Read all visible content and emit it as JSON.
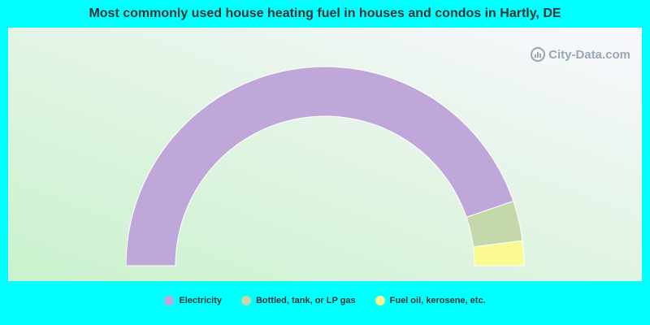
{
  "chart_data": {
    "type": "pie",
    "variant": "half-donut",
    "title": "Most commonly used house heating fuel in houses and condos in Hartly, DE",
    "categories": [
      "Electricity",
      "Bottled, tank, or LP gas",
      "Fuel oil, kerosene, etc."
    ],
    "values": [
      89.5,
      6.5,
      4.0
    ],
    "unit": "%",
    "colors": [
      "#bfa8d9",
      "#c4d8aa",
      "#fafa90"
    ],
    "legend_position": "bottom"
  },
  "watermark": {
    "text": "City-Data.com"
  }
}
